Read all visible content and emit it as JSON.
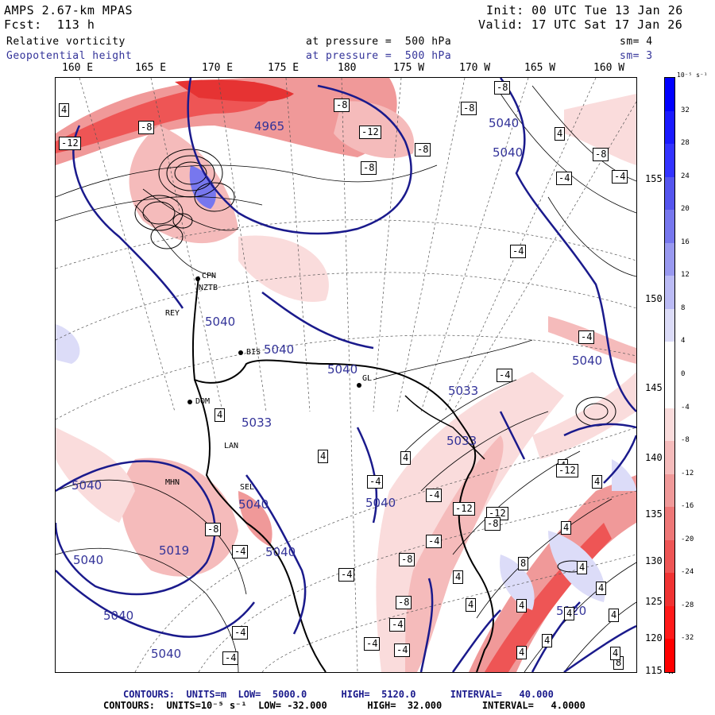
{
  "header": {
    "model": "AMPS 2.67-km MPAS",
    "forecast": "Fcst:  113 h",
    "init": "Init: 00 UTC Tue 13 Jan 26",
    "valid": "Valid: 17 UTC Sat 17 Jan 26",
    "field1_name": "Relative vorticity",
    "field1_level": "at pressure =  500 hPa",
    "field1_sm": "sm= 4",
    "field2_name": "Geopotential height",
    "field2_level": "at pressure =  500 hPa",
    "field2_sm": "sm= 3"
  },
  "map": {
    "lon_labels": [
      "160 E",
      "165 E",
      "170 E",
      "175 E",
      "180",
      "175 W",
      "170 W",
      "165 W",
      "160 W"
    ],
    "lat_labels": [
      "155 W",
      "150 W",
      "145 W",
      "140 W",
      "135 W",
      "130 W",
      "125 W",
      "120 W",
      "115 W"
    ],
    "stations": [
      "CPN",
      "NZTB",
      "REY",
      "BIS",
      "GL",
      "DOM",
      "LAN",
      "MHN",
      "SEL"
    ],
    "height_contour_labels": [
      "4965",
      "5040",
      "5040",
      "5040",
      "5040",
      "5040",
      "5040",
      "5033",
      "5033",
      "5033",
      "5040",
      "5040",
      "5040",
      "5019",
      "5040",
      "5040",
      "5040",
      "5040",
      "5120"
    ],
    "vorticity_box_labels": [
      "4",
      "-12",
      "-8",
      "-8",
      "-12",
      "-8",
      "-8",
      "-8",
      "-8",
      "4",
      "-4",
      "-8",
      "-4",
      "-4",
      "-4",
      "-4",
      "4",
      "4",
      "4",
      "-4",
      "4",
      "-4",
      "-8",
      "4",
      "-4",
      "-12",
      "-12",
      "4",
      "-8",
      "-4",
      "8",
      "4",
      "-4",
      "-8",
      "-4",
      "4",
      "4",
      "-4",
      "-4",
      "4",
      "-8",
      "-4",
      "4",
      "-4",
      "4",
      "-12",
      "4",
      "8",
      "4",
      "4",
      "4"
    ],
    "colors": {
      "height_contour": "#1a1a8c",
      "positive_vorticity": "#3333cc",
      "negative_vorticity": "#e63333"
    }
  },
  "colorbar": {
    "unit": "10⁻⁵ s⁻¹",
    "labels": [
      "32",
      "28",
      "24",
      "20",
      "16",
      "12",
      "8",
      "4",
      "0",
      "-4",
      "-8",
      "-12",
      "-16",
      "-20",
      "-24",
      "-28",
      "-32"
    ],
    "colors": [
      "#0000ff",
      "#1a1aff",
      "#3333ff",
      "#5555ee",
      "#7777ee",
      "#9999f0",
      "#bbbbf5",
      "#dcdcf8",
      "#ffffff",
      "#ffffff",
      "#fadcdc",
      "#f5bbbb",
      "#f09999",
      "#ee7777",
      "#ee5555",
      "#f03333",
      "#ff1a1a",
      "#ff0000"
    ]
  },
  "footer": {
    "line1": "CONTOURS:  UNITS=m  LOW=  5000.0      HIGH=  5120.0      INTERVAL=   40.000",
    "line2": "CONTOURS:  UNITS=10⁻⁵ s⁻¹  LOW= -32.000       HIGH=  32.000       INTERVAL=   4.0000"
  }
}
